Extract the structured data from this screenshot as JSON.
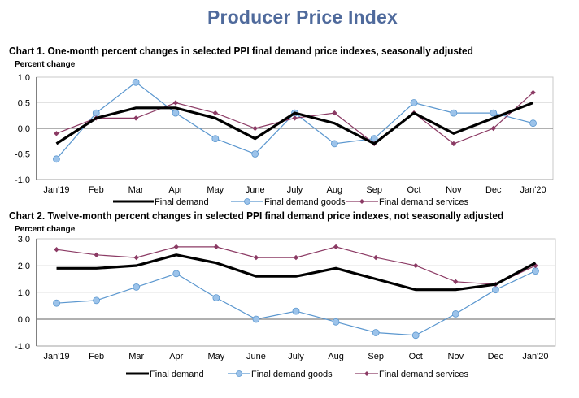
{
  "page": {
    "title": "Producer Price Index"
  },
  "colors": {
    "final_demand": "#000000",
    "final_demand_goods": "#5b97cf",
    "final_demand_goods_marker": "#9cc3ea",
    "final_demand_services": "#8b3a64",
    "title": "#4f6a9c"
  },
  "chart_data": [
    {
      "type": "line",
      "title": "Chart 1. One-month percent changes in selected PPI final demand price indexes, seasonally adjusted",
      "xlabel": "",
      "ylabel": "Percent change",
      "categories": [
        "Jan'19",
        "Feb",
        "Mar",
        "Apr",
        "May",
        "June",
        "July",
        "Aug",
        "Sep",
        "Oct",
        "Nov",
        "Dec",
        "Jan'20"
      ],
      "yticks": [
        "1.0",
        "0.5",
        "0.0",
        "-0.5",
        "-1.0"
      ],
      "ytick_values": [
        1.0,
        0.5,
        0.0,
        -0.5,
        -1.0
      ],
      "ylim": [
        -1.0,
        1.0
      ],
      "grid": true,
      "legend_position": "bottom",
      "series": [
        {
          "name": "Final demand",
          "key": "final_demand",
          "values": [
            -0.3,
            0.2,
            0.4,
            0.4,
            0.2,
            -0.2,
            0.3,
            0.1,
            -0.3,
            0.3,
            -0.1,
            0.2,
            0.5
          ]
        },
        {
          "name": "Final demand goods",
          "key": "final_demand_goods",
          "values": [
            -0.6,
            0.3,
            0.9,
            0.3,
            -0.2,
            -0.5,
            0.3,
            -0.3,
            -0.2,
            0.5,
            0.3,
            0.3,
            0.1
          ]
        },
        {
          "name": "Final demand services",
          "key": "final_demand_services",
          "values": [
            -0.1,
            0.2,
            0.2,
            0.5,
            0.3,
            0.0,
            0.2,
            0.3,
            -0.3,
            0.3,
            -0.3,
            0.0,
            0.7
          ]
        }
      ]
    },
    {
      "type": "line",
      "title": "Chart 2. Twelve-month percent changes in selected PPI final demand price indexes, not seasonally adjusted",
      "xlabel": "",
      "ylabel": "Percent change",
      "categories": [
        "Jan'19",
        "Feb",
        "Mar",
        "Apr",
        "May",
        "June",
        "July",
        "Aug",
        "Sep",
        "Oct",
        "Nov",
        "Dec",
        "Jan'20"
      ],
      "yticks": [
        "3.0",
        "2.0",
        "1.0",
        "0.0",
        "-1.0"
      ],
      "ytick_values": [
        3.0,
        2.0,
        1.0,
        0.0,
        -1.0
      ],
      "ylim": [
        -1.0,
        3.0
      ],
      "grid": true,
      "legend_position": "bottom",
      "series": [
        {
          "name": "Final demand",
          "key": "final_demand",
          "values": [
            1.9,
            1.9,
            2.0,
            2.4,
            2.1,
            1.6,
            1.6,
            1.9,
            1.5,
            1.1,
            1.1,
            1.3,
            2.1
          ]
        },
        {
          "name": "Final demand goods",
          "key": "final_demand_goods",
          "values": [
            0.6,
            0.7,
            1.2,
            1.7,
            0.8,
            0.0,
            0.3,
            -0.1,
            -0.5,
            -0.6,
            0.2,
            1.1,
            1.8
          ]
        },
        {
          "name": "Final demand services",
          "key": "final_demand_services",
          "values": [
            2.6,
            2.4,
            2.3,
            2.7,
            2.7,
            2.3,
            2.3,
            2.7,
            2.3,
            2.0,
            1.4,
            1.3,
            2.0
          ]
        }
      ]
    }
  ]
}
